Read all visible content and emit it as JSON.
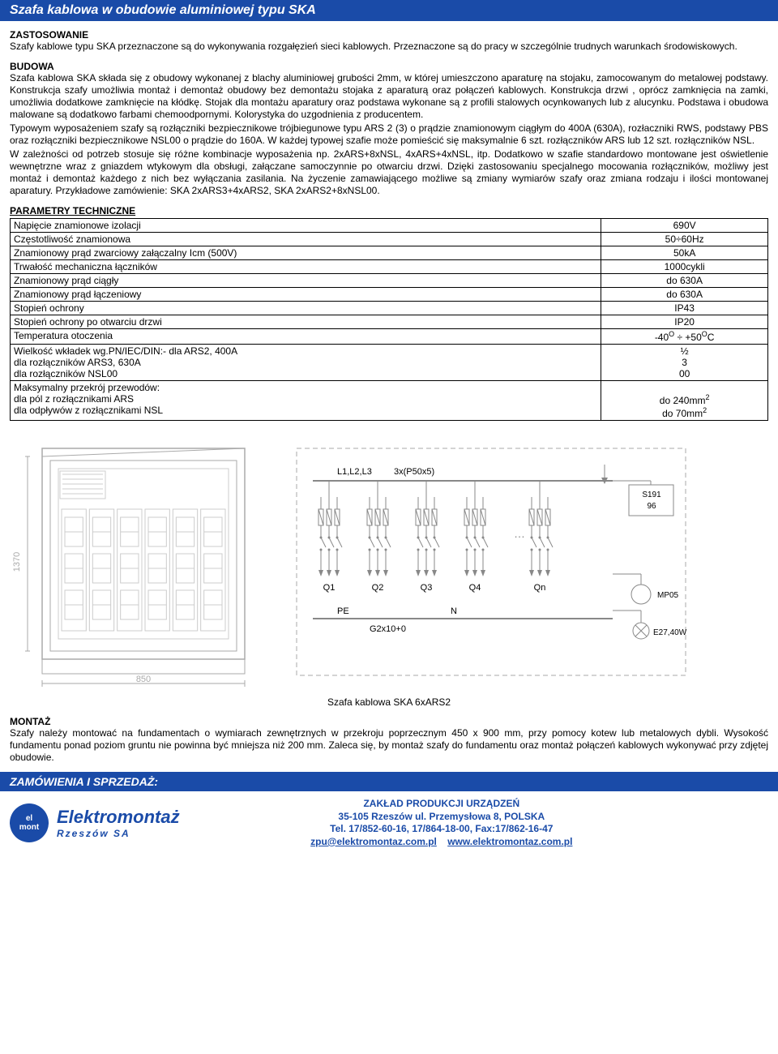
{
  "title_bar": "Szafa kablowa w obudowie aluminiowej  typu SKA",
  "sections": {
    "zastosowanie_head": "ZASTOSOWANIE",
    "zastosowanie_body": "Szafy kablowe typu SKA przeznaczone są do wykonywania rozgałęzień sieci kablowych. Przeznaczone są do pracy w szczególnie trudnych warunkach środowiskowych.",
    "budowa_head": "BUDOWA",
    "budowa_p1": "Szafa kablowa SKA składa się z obudowy wykonanej z blachy aluminiowej grubości 2mm, w której umieszczono aparaturę na stojaku, zamocowanym do metalowej podstawy. Konstrukcja szafy umożliwia montaż i demontaż obudowy bez demontażu stojaka z aparaturą oraz połączeń kablowych. Konstrukcja drzwi , oprócz zamknięcia na zamki, umożliwia dodatkowe zamknięcie na kłódkę. Stojak dla montażu aparatury oraz podstawa wykonane są z profili stalowych ocynkowanych lub z alucynku. Podstawa i obudowa malowane są dodatkowo farbami chemoodpornymi. Kolorystyka do uzgodnienia z producentem.",
    "budowa_p2": "Typowym wyposażeniem szafy są rozłączniki bezpiecznikowe trójbiegunowe typu ARS 2 (3) o prądzie znamionowym ciągłym do 400A (630A), rozłaczniki RWS, podstawy PBS oraz rozłączniki bezpiecznikowe NSL00 o prądzie do 160A. W każdej typowej szafie może pomieścić się maksymalnie 6 szt. rozłączników ARS lub 12 szt. rozłączników NSL.",
    "budowa_p3": "W zależności od potrzeb stosuje się różne kombinacje wyposażenia np. 2xARS+8xNSL, 4xARS+4xNSL, itp. Dodatkowo w szafie standardowo montowane jest oświetlenie wewnętrzne wraz z gniazdem wtykowym dla obsługi, załączane samoczynnie po otwarciu drzwi. Dzięki zastosowaniu specjalnego mocowania rozłączników, możliwy jest montaż i demontaż każdego z nich bez wyłączania zasilania. Na życzenie zamawiającego możliwe są zmiany wymiarów szafy oraz zmiana rodzaju i ilości montowanej aparatury. Przykładowe zamówienie: SKA 2xARS3+4xARS2, SKA 2xARS2+8xNSL00.",
    "param_head": "PARAMETRY TECHNICZNE",
    "montaz_head": "MONTAŻ",
    "montaz_body": "Szafy należy montować na fundamentach o wymiarach zewnętrznych w przekroju poprzecznym 450 x 900 mm, przy pomocy kotew lub metalowych dybli. Wysokość fundamentu ponad poziom gruntu nie powinna być mniejsza niż 200 mm. Zaleca się, by montaż szafy do fundamentu oraz montaż połączeń kablowych wykonywać przy zdjętej obudowie.",
    "order_head": "ZAMÓWIENIA I SPRZEDAŻ:"
  },
  "params_table": {
    "rows": [
      {
        "label": "Napięcie znamionowe izolacji",
        "value": "690V"
      },
      {
        "label": "Częstotliwość znamionowa",
        "value": "50÷60Hz"
      },
      {
        "label": "Znamionowy prąd zwarciowy załączalny Icm (500V)",
        "value": "50kA"
      },
      {
        "label": "Trwałość mechaniczna łączników",
        "value": "1000cykli"
      },
      {
        "label": "Znamionowy prąd ciągły",
        "value": "do 630A"
      },
      {
        "label": "Znamionowy prąd łączeniowy",
        "value": "do 630A"
      },
      {
        "label": "Stopień ochrony",
        "value": "IP43"
      },
      {
        "label": "Stopień ochrony po otwarciu drzwi",
        "value": "IP20"
      },
      {
        "label": "Temperatura otoczenia",
        "value_html": "-40<sup>O</sup> ÷ +50<sup>O</sup>C"
      },
      {
        "label": "Wielkość wkładek wg.PN/IEC/DIN:- dla ARS2, 400A\n                                                     dla rozłączników ARS3, 630A\n                                                     dla rozłączników NSL00",
        "value": "½\n3\n00"
      },
      {
        "label": "Maksymalny przekrój przewodów:\n                                                     dla pól z rozłącznikami ARS\n                                                     dla odpływów z rozłącznikami NSL",
        "value_html": "<br>do 240mm<sup>2</sup><br>do 70mm<sup>2</sup>"
      }
    ]
  },
  "diagram": {
    "caption": "Szafa kablowa SKA 6xARS2",
    "height_dim": "1370",
    "width_dim": "850",
    "front": {
      "outer_color": "#aaaaaa",
      "inner_color": "#cccccc",
      "switch_count": 6
    },
    "schematic": {
      "busbar_label": "L1,L2,L3",
      "feed_label": "3x(P50x5)",
      "switches": [
        "Q1",
        "Q2",
        "Q3",
        "Q4",
        "Qn"
      ],
      "meter_label": "S191\n96",
      "socket_label": "MP05",
      "lamp_label": "E27,40W",
      "pe_label": "PE",
      "n_label": "N",
      "pen_bus": "G2x10+0",
      "box_color": "#aaaaaa",
      "line_color": "#888888"
    }
  },
  "footer": {
    "logo_mark": "el\nmont",
    "logo_name": "Elektromontaż",
    "logo_sub": "Rzeszów SA",
    "company": "ZAKŁAD PRODUKCJI URZĄDZEŃ",
    "address": "35-105 Rzeszów ul. Przemysłowa 8, POLSKA",
    "tel": "Tel. 17/852-60-16, 17/864-18-00, Fax:17/862-16-47",
    "email": "zpu@elektromontaz.com.pl",
    "web": "www.elektromontaz.com.pl"
  }
}
